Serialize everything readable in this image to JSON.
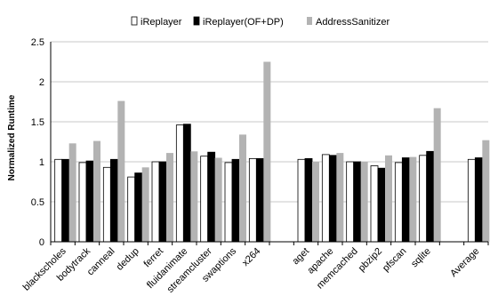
{
  "chart_data": {
    "type": "bar",
    "title": "",
    "xlabel": "",
    "ylabel": "Normalized Runtime",
    "ylim": [
      0,
      2.5
    ],
    "yticks": [
      "0",
      "0.5",
      "1",
      "1.5",
      "2",
      "2.5"
    ],
    "grid": "horizontal",
    "legend_position": "top",
    "categories": [
      "blackscholes",
      "bodytrack",
      "canneal",
      "dedup",
      "ferret",
      "fluidanimate",
      "streamcluster",
      "swaptions",
      "x264",
      "",
      "aget",
      "apache",
      "memcached",
      "pbzip2",
      "pfscan",
      "sqlite",
      "",
      "Average"
    ],
    "series": [
      {
        "name": "iReplayer",
        "color": "#ffffff",
        "values": [
          1.03,
          0.99,
          0.93,
          0.81,
          1.0,
          1.46,
          1.07,
          0.99,
          1.04,
          null,
          1.03,
          1.09,
          1.0,
          0.95,
          0.99,
          1.08,
          null,
          1.03
        ]
      },
      {
        "name": "iReplayer(OF+DP)",
        "color": "#000000",
        "values": [
          1.03,
          1.01,
          1.03,
          0.86,
          1.0,
          1.47,
          1.12,
          1.03,
          1.04,
          null,
          1.04,
          1.08,
          1.0,
          0.92,
          1.05,
          1.13,
          null,
          1.05
        ]
      },
      {
        "name": "AddressSanitizer",
        "color": "#b3b3b3",
        "values": [
          1.23,
          1.26,
          1.76,
          0.93,
          1.11,
          1.13,
          1.05,
          1.34,
          2.25,
          null,
          1.0,
          1.11,
          1.0,
          1.08,
          1.06,
          1.67,
          null,
          1.27
        ]
      }
    ]
  }
}
